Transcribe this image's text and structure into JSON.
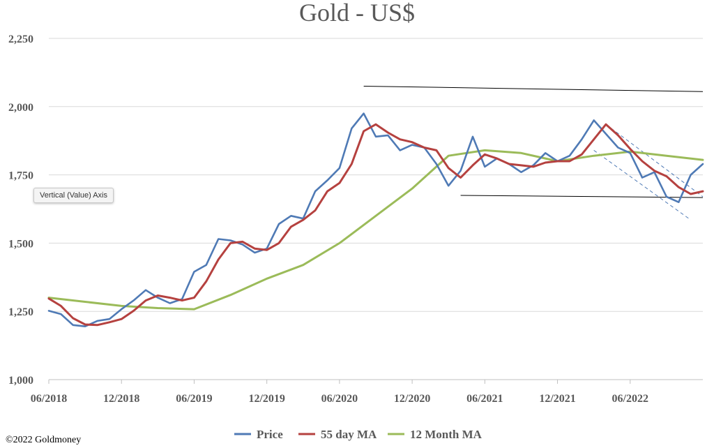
{
  "chart_data": {
    "type": "line",
    "title": "Gold - US$",
    "xlabel": "",
    "ylabel": "",
    "ylim": [
      1000,
      2250
    ],
    "x_range": [
      "2018-06",
      "2022-12"
    ],
    "yticks": [
      "1,000",
      "1,250",
      "1,500",
      "1,750",
      "2,000",
      "2,250"
    ],
    "ytick_values": [
      1000,
      1250,
      1500,
      1750,
      2000,
      2250
    ],
    "xticks": [
      "06/2018",
      "12/2018",
      "06/2019",
      "12/2019",
      "06/2020",
      "12/2020",
      "06/2021",
      "12/2021",
      "06/2022"
    ],
    "xtick_values": [
      "2018-06",
      "2018-12",
      "2019-06",
      "2019-12",
      "2020-06",
      "2020-12",
      "2021-06",
      "2021-12",
      "2022-06"
    ],
    "grid": "horizontal",
    "legend": "bottom",
    "series": [
      {
        "name": "Price",
        "color": "#4f7ab5",
        "points": [
          [
            "2018-06",
            1252
          ],
          [
            "2018-07",
            1240
          ],
          [
            "2018-08",
            1200
          ],
          [
            "2018-09",
            1195
          ],
          [
            "2018-10",
            1215
          ],
          [
            "2018-11",
            1222
          ],
          [
            "2018-12",
            1258
          ],
          [
            "2019-01",
            1290
          ],
          [
            "2019-02",
            1328
          ],
          [
            "2019-03",
            1300
          ],
          [
            "2019-04",
            1280
          ],
          [
            "2019-05",
            1295
          ],
          [
            "2019-06",
            1395
          ],
          [
            "2019-07",
            1420
          ],
          [
            "2019-08",
            1515
          ],
          [
            "2019-09",
            1510
          ],
          [
            "2019-10",
            1495
          ],
          [
            "2019-11",
            1465
          ],
          [
            "2019-12",
            1480
          ],
          [
            "2020-01",
            1570
          ],
          [
            "2020-02",
            1600
          ],
          [
            "2020-03",
            1590
          ],
          [
            "2020-04",
            1690
          ],
          [
            "2020-05",
            1730
          ],
          [
            "2020-06",
            1775
          ],
          [
            "2020-07",
            1920
          ],
          [
            "2020-08",
            1975
          ],
          [
            "2020-09",
            1890
          ],
          [
            "2020-10",
            1895
          ],
          [
            "2020-11",
            1840
          ],
          [
            "2020-12",
            1860
          ],
          [
            "2021-01",
            1850
          ],
          [
            "2021-02",
            1790
          ],
          [
            "2021-03",
            1710
          ],
          [
            "2021-04",
            1765
          ],
          [
            "2021-05",
            1890
          ],
          [
            "2021-06",
            1780
          ],
          [
            "2021-07",
            1810
          ],
          [
            "2021-08",
            1790
          ],
          [
            "2021-09",
            1760
          ],
          [
            "2021-10",
            1785
          ],
          [
            "2021-11",
            1830
          ],
          [
            "2021-12",
            1800
          ],
          [
            "2022-01",
            1820
          ],
          [
            "2022-02",
            1880
          ],
          [
            "2022-03",
            1950
          ],
          [
            "2022-04",
            1900
          ],
          [
            "2022-05",
            1850
          ],
          [
            "2022-06",
            1830
          ],
          [
            "2022-07",
            1740
          ],
          [
            "2022-08",
            1760
          ],
          [
            "2022-09",
            1670
          ],
          [
            "2022-10",
            1650
          ],
          [
            "2022-11",
            1750
          ],
          [
            "2022-12",
            1790
          ]
        ]
      },
      {
        "name": "55 day MA",
        "color": "#b5413f",
        "points": [
          [
            "2018-06",
            1297
          ],
          [
            "2018-07",
            1270
          ],
          [
            "2018-08",
            1225
          ],
          [
            "2018-09",
            1202
          ],
          [
            "2018-10",
            1200
          ],
          [
            "2018-11",
            1210
          ],
          [
            "2018-12",
            1222
          ],
          [
            "2019-01",
            1252
          ],
          [
            "2019-02",
            1290
          ],
          [
            "2019-03",
            1308
          ],
          [
            "2019-04",
            1300
          ],
          [
            "2019-05",
            1290
          ],
          [
            "2019-06",
            1300
          ],
          [
            "2019-07",
            1360
          ],
          [
            "2019-08",
            1440
          ],
          [
            "2019-09",
            1500
          ],
          [
            "2019-10",
            1505
          ],
          [
            "2019-11",
            1480
          ],
          [
            "2019-12",
            1475
          ],
          [
            "2020-01",
            1500
          ],
          [
            "2020-02",
            1560
          ],
          [
            "2020-03",
            1585
          ],
          [
            "2020-04",
            1620
          ],
          [
            "2020-05",
            1690
          ],
          [
            "2020-06",
            1720
          ],
          [
            "2020-07",
            1790
          ],
          [
            "2020-08",
            1910
          ],
          [
            "2020-09",
            1935
          ],
          [
            "2020-10",
            1905
          ],
          [
            "2020-11",
            1880
          ],
          [
            "2020-12",
            1870
          ],
          [
            "2021-01",
            1850
          ],
          [
            "2021-02",
            1840
          ],
          [
            "2021-03",
            1775
          ],
          [
            "2021-04",
            1740
          ],
          [
            "2021-05",
            1785
          ],
          [
            "2021-06",
            1825
          ],
          [
            "2021-07",
            1810
          ],
          [
            "2021-08",
            1790
          ],
          [
            "2021-09",
            1785
          ],
          [
            "2021-10",
            1780
          ],
          [
            "2021-11",
            1795
          ],
          [
            "2021-12",
            1800
          ],
          [
            "2022-01",
            1800
          ],
          [
            "2022-02",
            1825
          ],
          [
            "2022-03",
            1880
          ],
          [
            "2022-04",
            1935
          ],
          [
            "2022-05",
            1895
          ],
          [
            "2022-06",
            1845
          ],
          [
            "2022-07",
            1800
          ],
          [
            "2022-08",
            1765
          ],
          [
            "2022-09",
            1745
          ],
          [
            "2022-10",
            1705
          ],
          [
            "2022-11",
            1680
          ],
          [
            "2022-12",
            1690
          ]
        ]
      },
      {
        "name": "12 Month MA",
        "color": "#9bbb59",
        "points": [
          [
            "2018-06",
            1300
          ],
          [
            "2018-09",
            1285
          ],
          [
            "2018-12",
            1270
          ],
          [
            "2019-03",
            1262
          ],
          [
            "2019-06",
            1258
          ],
          [
            "2019-09",
            1310
          ],
          [
            "2019-12",
            1370
          ],
          [
            "2020-03",
            1420
          ],
          [
            "2020-06",
            1500
          ],
          [
            "2020-09",
            1600
          ],
          [
            "2020-12",
            1700
          ],
          [
            "2021-03",
            1820
          ],
          [
            "2021-06",
            1840
          ],
          [
            "2021-09",
            1830
          ],
          [
            "2021-12",
            1800
          ],
          [
            "2022-03",
            1820
          ],
          [
            "2022-06",
            1835
          ],
          [
            "2022-09",
            1820
          ],
          [
            "2022-12",
            1805
          ]
        ]
      }
    ],
    "annotation_lines": [
      {
        "name": "resistance-trendline",
        "style": "solid",
        "from": [
          "2020-08",
          2075
        ],
        "to": [
          "2022-12",
          2055
        ]
      },
      {
        "name": "support-trendline",
        "style": "solid",
        "from": [
          "2021-04",
          1675
        ],
        "to": [
          "2022-12",
          1667
        ]
      },
      {
        "name": "channel-upper",
        "style": "dashed",
        "from": [
          "2022-04",
          1935
        ],
        "to": [
          "2022-12",
          1670
        ]
      },
      {
        "name": "channel-lower",
        "style": "dashed",
        "from": [
          "2022-03",
          1840
        ],
        "to": [
          "2022-11",
          1585
        ]
      }
    ]
  },
  "copyright": "©2022 Goldmoney",
  "tooltip": "Vertical (Value) Axis"
}
